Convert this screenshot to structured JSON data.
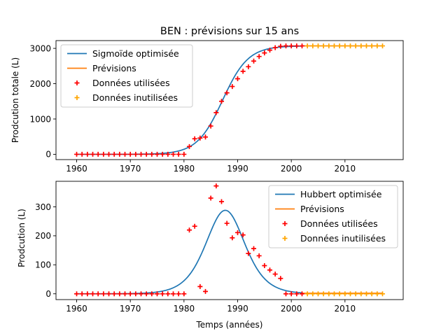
{
  "chart_data": [
    {
      "type": "line",
      "title": "BEN : prévisions sur 15 ans",
      "xlabel": "",
      "ylabel": "Prodcution totale (L)",
      "xlim": [
        1956.15,
        2020.85
      ],
      "ylim": [
        -150,
        3220
      ],
      "xticks": [
        1960,
        1970,
        1980,
        1990,
        2000,
        2010
      ],
      "yticks": [
        0,
        1000,
        2000,
        3000
      ],
      "legend_position": "upper left",
      "colors": {
        "fit": "#1f77b4",
        "forecast": "#ff7f0e",
        "used": "#ff0000",
        "unused": "#ffa500"
      },
      "legend": [
        "Sigmoïde optimisée",
        "Prévisions",
        "Données utilisées",
        "Données inutilisées"
      ],
      "series": [
        {
          "name": "Sigmoïde optimisée",
          "kind": "line",
          "model": "sigmoid",
          "params": {
            "L": 3070,
            "x0": 1987.2,
            "k": 0.42
          },
          "x_range": [
            1960,
            2002
          ]
        },
        {
          "name": "Prévisions",
          "kind": "line",
          "model": "constant",
          "value": 3070,
          "x_range": [
            2002,
            2017
          ]
        },
        {
          "name": "Données utilisées",
          "kind": "scatter",
          "marker": "+",
          "x": [
            1960,
            1961,
            1962,
            1963,
            1964,
            1965,
            1966,
            1967,
            1968,
            1969,
            1970,
            1971,
            1972,
            1973,
            1974,
            1975,
            1976,
            1977,
            1978,
            1979,
            1980,
            1981,
            1982,
            1983,
            1984,
            1985,
            1986,
            1987,
            1988,
            1989,
            1990,
            1991,
            1992,
            1993,
            1994,
            1995,
            1996,
            1997,
            1998,
            1999,
            2000,
            2001,
            2002
          ],
          "y": [
            0,
            0,
            0,
            0,
            0,
            0,
            0,
            0,
            0,
            0,
            0,
            0,
            0,
            0,
            0,
            0,
            0,
            0,
            0,
            0,
            0,
            220,
            440,
            460,
            490,
            800,
            1180,
            1500,
            1740,
            1920,
            2140,
            2350,
            2480,
            2640,
            2770,
            2870,
            2950,
            3020,
            3060,
            3070,
            3070,
            3070,
            3070
          ]
        },
        {
          "name": "Données inutilisées",
          "kind": "scatter",
          "marker": "+",
          "x": [
            2003,
            2004,
            2005,
            2006,
            2007,
            2008,
            2009,
            2010,
            2011,
            2012,
            2013,
            2014,
            2015,
            2016,
            2017
          ],
          "y": [
            3070,
            3070,
            3070,
            3070,
            3070,
            3070,
            3070,
            3070,
            3070,
            3070,
            3070,
            3070,
            3070,
            3070,
            3070
          ]
        }
      ]
    },
    {
      "type": "line",
      "title": "",
      "xlabel": "Temps (années)",
      "ylabel": "Prodcution (L)",
      "xlim": [
        1956.15,
        2020.85
      ],
      "ylim": [
        -20,
        388
      ],
      "xticks": [
        1960,
        1970,
        1980,
        1990,
        2000,
        2010
      ],
      "yticks": [
        0,
        100,
        200,
        300
      ],
      "legend_position": "upper right",
      "colors": {
        "fit": "#1f77b4",
        "forecast": "#ff7f0e",
        "used": "#ff0000",
        "unused": "#ffa500"
      },
      "legend": [
        "Hubbert optimisée",
        "Prévisions",
        "Données utilisées",
        "Données inutilisées"
      ],
      "series": [
        {
          "name": "Hubbert optimisée",
          "kind": "line",
          "model": "hubbert",
          "params": {
            "peak": 288,
            "x0": 1987.7,
            "k": 0.41
          },
          "x_range": [
            1960,
            2002
          ]
        },
        {
          "name": "Prévisions",
          "kind": "line",
          "model": "constant",
          "value": 2,
          "x_range": [
            2002,
            2017
          ]
        },
        {
          "name": "Données utilisées",
          "kind": "scatter",
          "marker": "+",
          "x": [
            1960,
            1961,
            1962,
            1963,
            1964,
            1965,
            1966,
            1967,
            1968,
            1969,
            1970,
            1971,
            1972,
            1973,
            1974,
            1975,
            1976,
            1977,
            1978,
            1979,
            1980,
            1981,
            1982,
            1983,
            1984,
            1985,
            1986,
            1987,
            1988,
            1989,
            1990,
            1991,
            1992,
            1993,
            1994,
            1995,
            1996,
            1997,
            1998,
            1999,
            2000,
            2001,
            2002
          ],
          "y": [
            0,
            0,
            0,
            0,
            0,
            0,
            0,
            0,
            0,
            0,
            0,
            0,
            0,
            0,
            0,
            0,
            0,
            0,
            0,
            0,
            0,
            220,
            233,
            25,
            8,
            330,
            372,
            318,
            243,
            193,
            211,
            203,
            139,
            156,
            131,
            97,
            82,
            68,
            53,
            0,
            0,
            0,
            0
          ]
        },
        {
          "name": "Données inutilisées",
          "kind": "scatter",
          "marker": "+",
          "x": [
            2003,
            2004,
            2005,
            2006,
            2007,
            2008,
            2009,
            2010,
            2011,
            2012,
            2013,
            2014,
            2015,
            2016,
            2017
          ],
          "y": [
            0,
            0,
            0,
            0,
            0,
            0,
            0,
            0,
            0,
            0,
            0,
            0,
            0,
            0,
            0
          ]
        }
      ]
    }
  ]
}
